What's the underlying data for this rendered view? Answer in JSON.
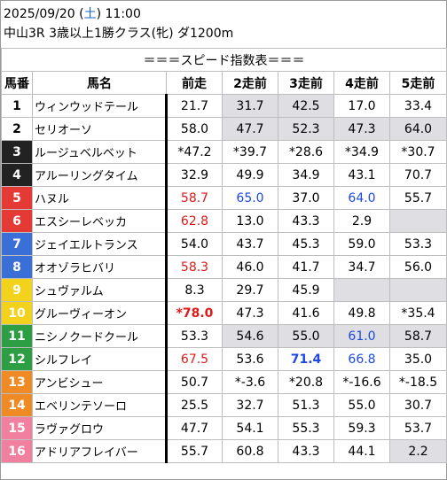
{
  "header": {
    "line1_pre": "2025/09/20 (",
    "line1_day": "土",
    "line1_post": ") 11:00",
    "line2": "中山3R 3歳以上1勝クラス(牝) ダ1200m"
  },
  "table": {
    "title": "＝＝＝スピード指数表＝＝＝",
    "columns": [
      "馬番",
      "馬名",
      "前走",
      "2走前",
      "3走前",
      "4走前",
      "5走前"
    ],
    "colors": {
      "gray": "#dedee3",
      "red": "#e01818",
      "blue": "#1c48e6"
    },
    "rows": [
      {
        "num": "1",
        "name": "ウィンウッドテール",
        "bg": "#ffffff",
        "fg": "#000000",
        "vals": [
          "21.7",
          "31.7",
          "42.5",
          "17.0",
          "33.4"
        ],
        "styles": [
          "",
          "gray",
          "gray",
          "",
          ""
        ]
      },
      {
        "num": "2",
        "name": "セリオーソ",
        "bg": "#ffffff",
        "fg": "#000000",
        "vals": [
          "58.0",
          "47.7",
          "52.3",
          "47.3",
          "64.0"
        ],
        "styles": [
          "",
          "gray",
          "gray",
          "gray",
          "gray"
        ]
      },
      {
        "num": "3",
        "name": "ルージュベルベット",
        "bg": "#222222",
        "fg": "#ffffff",
        "vals": [
          "*47.2",
          "*39.7",
          "*28.6",
          "*34.9",
          "*30.7"
        ],
        "styles": [
          "",
          "",
          "",
          "",
          ""
        ]
      },
      {
        "num": "4",
        "name": "アルーリングタイム",
        "bg": "#222222",
        "fg": "#ffffff",
        "vals": [
          "32.9",
          "49.9",
          "34.9",
          "43.1",
          "70.7"
        ],
        "styles": [
          "",
          "",
          "",
          "",
          ""
        ]
      },
      {
        "num": "5",
        "name": "ハヌル",
        "bg": "#e53935",
        "fg": "#ffffff",
        "vals": [
          "58.7",
          "65.0",
          "37.0",
          "64.0",
          "55.7"
        ],
        "styles": [
          "red",
          "blue",
          "",
          "blue",
          ""
        ]
      },
      {
        "num": "6",
        "name": "エスシーレベッカ",
        "bg": "#e53935",
        "fg": "#ffffff",
        "vals": [
          "62.8",
          "13.0",
          "43.3",
          "2.9",
          ""
        ],
        "styles": [
          "red",
          "",
          "",
          "",
          "gray"
        ]
      },
      {
        "num": "7",
        "name": "ジェイエルトランス",
        "bg": "#3b6fd8",
        "fg": "#ffffff",
        "vals": [
          "54.0",
          "43.7",
          "45.3",
          "59.0",
          "53.3"
        ],
        "styles": [
          "",
          "",
          "",
          "",
          ""
        ]
      },
      {
        "num": "8",
        "name": "オオゾラヒバリ",
        "bg": "#3b6fd8",
        "fg": "#ffffff",
        "vals": [
          "58.3",
          "46.0",
          "41.7",
          "34.7",
          "56.0"
        ],
        "styles": [
          "red",
          "",
          "",
          "",
          ""
        ]
      },
      {
        "num": "9",
        "name": "シュヴァルム",
        "bg": "#f2d21b",
        "fg": "#ffffff",
        "vals": [
          "8.3",
          "29.7",
          "45.9",
          "",
          ""
        ],
        "styles": [
          "",
          "",
          "",
          "gray",
          "gray"
        ]
      },
      {
        "num": "10",
        "name": "グルーヴィーオン",
        "bg": "#f2d21b",
        "fg": "#ffffff",
        "vals": [
          "*78.0",
          "47.3",
          "41.6",
          "49.8",
          "*35.4"
        ],
        "styles": [
          "red bold",
          "",
          "",
          "",
          ""
        ]
      },
      {
        "num": "11",
        "name": "ニシノクードクール",
        "bg": "#2e9e44",
        "fg": "#ffffff",
        "vals": [
          "53.3",
          "54.6",
          "55.0",
          "61.0",
          "58.7"
        ],
        "styles": [
          "",
          "gray",
          "gray",
          "gray blue",
          "gray"
        ]
      },
      {
        "num": "12",
        "name": "シルフレイ",
        "bg": "#2e9e44",
        "fg": "#ffffff",
        "vals": [
          "67.5",
          "53.6",
          "71.4",
          "66.8",
          "35.0"
        ],
        "styles": [
          "red",
          "",
          "blue bold",
          "blue",
          ""
        ]
      },
      {
        "num": "13",
        "name": "アンビシュー",
        "bg": "#f08a24",
        "fg": "#ffffff",
        "vals": [
          "50.7",
          "*-3.6",
          "*20.8",
          "*-16.6",
          "*-18.5"
        ],
        "styles": [
          "",
          "",
          "",
          "",
          ""
        ]
      },
      {
        "num": "14",
        "name": "エベリンテソーロ",
        "bg": "#f08a24",
        "fg": "#ffffff",
        "vals": [
          "25.5",
          "32.7",
          "51.3",
          "55.0",
          "30.7"
        ],
        "styles": [
          "",
          "",
          "",
          "",
          ""
        ]
      },
      {
        "num": "15",
        "name": "ラヴァグロウ",
        "bg": "#f07fa0",
        "fg": "#ffffff",
        "vals": [
          "47.7",
          "54.1",
          "55.3",
          "59.3",
          "53.7"
        ],
        "styles": [
          "",
          "",
          "",
          "",
          ""
        ]
      },
      {
        "num": "16",
        "name": "アドリアフレイバー",
        "bg": "#f07fa0",
        "fg": "#ffffff",
        "vals": [
          "55.7",
          "60.8",
          "43.3",
          "44.1",
          "2.2"
        ],
        "styles": [
          "",
          "",
          "",
          "",
          "gray"
        ]
      }
    ]
  }
}
